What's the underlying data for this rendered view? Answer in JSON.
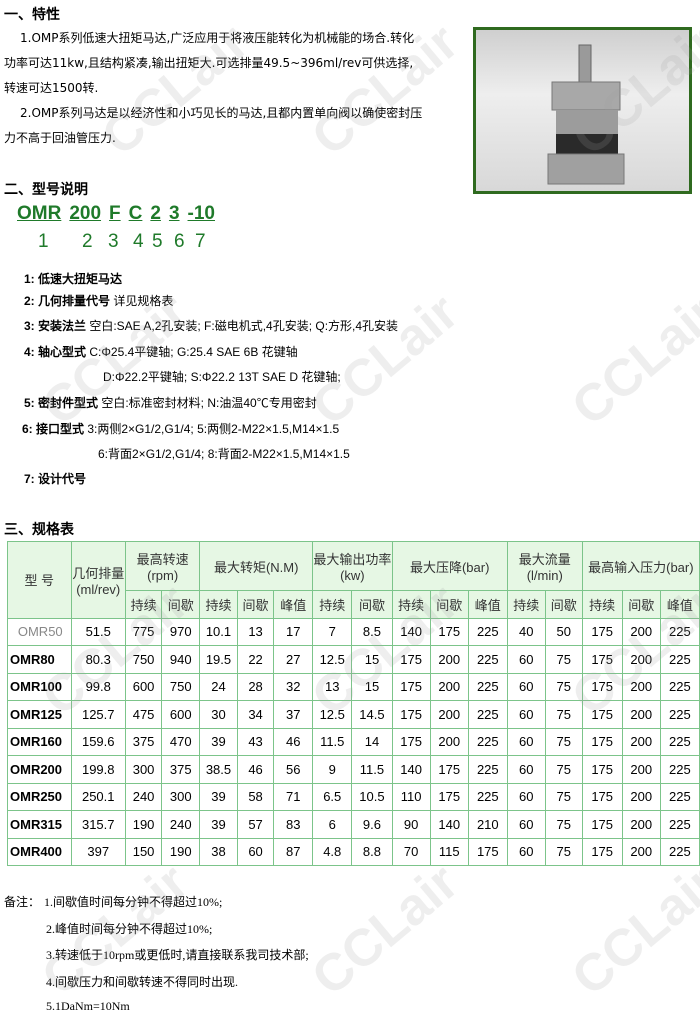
{
  "section1": {
    "title": "一、特性",
    "lines": [
      "1.OMP系列低速大扭矩马达,广泛应用于将液压能转化为机械能的场合.转化",
      "功率可达11kw,且结构紧凑,输出扭矩大.可选排量49.5~396ml/rev可供选择,",
      "转速可达1500转.",
      "2.OMP系列马达是以经济性和小巧见长的马达,且都内置单向阀以确使密封压",
      "力不高于回油管压力."
    ]
  },
  "section2": {
    "title": "二、型号说明",
    "code": [
      "OMR",
      "200",
      "F",
      "C",
      "2",
      "3",
      "-10"
    ],
    "numbers": [
      "1",
      "2",
      "3",
      "4",
      "5",
      "6",
      "7"
    ],
    "items": [
      {
        "label": "1: 低速大扭矩马达",
        "text": ""
      },
      {
        "label": "2: 几何排量代号",
        "text": "详见规格表"
      },
      {
        "label": "3: 安装法兰",
        "text": "空白:SAE A,2孔安装; F:磁电机式,4孔安装; Q:方形,4孔安装"
      },
      {
        "label": "4: 轴心型式",
        "text": "C:Φ25.4平键轴; G:25.4 SAE 6B 花键轴"
      },
      {
        "label": "",
        "text": "D:Φ22.2平键轴; S:Φ22.2 13T SAE D 花键轴;"
      },
      {
        "label": "5: 密封件型式",
        "text": "空白:标准密封材料; N:油温40℃专用密封"
      },
      {
        "label": "6: 接口型式",
        "text": "3:两侧2×G1/2,G1/4; 5:两侧2-M22×1.5,M14×1.5"
      },
      {
        "label": "",
        "text": "6:背面2×G1/2,G1/4; 8:背面2-M22×1.5,M14×1.5"
      },
      {
        "label": "7: 设计代号",
        "text": ""
      }
    ]
  },
  "section3": {
    "title": "三、规格表",
    "header1": [
      "型 号",
      "几何排量(ml/rev)",
      "最高转速(rpm)",
      "最大转矩(N.M)",
      "最大输出功率(kw)",
      "最大压降(bar)",
      "最大流量(l/min)",
      "最高输入压力(bar)"
    ],
    "header2": [
      "持续",
      "间歇",
      "持续",
      "间歇",
      "峰值",
      "持续",
      "间歇",
      "持续",
      "间歇",
      "峰值",
      "持续",
      "间歇",
      "持续",
      "间歇",
      "峰值"
    ],
    "rows": [
      [
        "OMR50",
        "51.5",
        "775",
        "970",
        "10.1",
        "13",
        "17",
        "7",
        "8.5",
        "140",
        "175",
        "225",
        "40",
        "50",
        "175",
        "200",
        "225"
      ],
      [
        "OMR80",
        "80.3",
        "750",
        "940",
        "19.5",
        "22",
        "27",
        "12.5",
        "15",
        "175",
        "200",
        "225",
        "60",
        "75",
        "175",
        "200",
        "225"
      ],
      [
        "OMR100",
        "99.8",
        "600",
        "750",
        "24",
        "28",
        "32",
        "13",
        "15",
        "175",
        "200",
        "225",
        "60",
        "75",
        "175",
        "200",
        "225"
      ],
      [
        "OMR125",
        "125.7",
        "475",
        "600",
        "30",
        "34",
        "37",
        "12.5",
        "14.5",
        "175",
        "200",
        "225",
        "60",
        "75",
        "175",
        "200",
        "225"
      ],
      [
        "OMR160",
        "159.6",
        "375",
        "470",
        "39",
        "43",
        "46",
        "11.5",
        "14",
        "175",
        "200",
        "225",
        "60",
        "75",
        "175",
        "200",
        "225"
      ],
      [
        "OMR200",
        "199.8",
        "300",
        "375",
        "38.5",
        "46",
        "56",
        "9",
        "11.5",
        "140",
        "175",
        "225",
        "60",
        "75",
        "175",
        "200",
        "225"
      ],
      [
        "OMR250",
        "250.1",
        "240",
        "300",
        "39",
        "58",
        "71",
        "6.5",
        "10.5",
        "110",
        "175",
        "225",
        "60",
        "75",
        "175",
        "200",
        "225"
      ],
      [
        "OMR315",
        "315.7",
        "190",
        "240",
        "39",
        "57",
        "83",
        "6",
        "9.6",
        "90",
        "140",
        "210",
        "60",
        "75",
        "175",
        "200",
        "225"
      ],
      [
        "OMR400",
        "397",
        "150",
        "190",
        "38",
        "60",
        "87",
        "4.8",
        "8.8",
        "70",
        "115",
        "175",
        "60",
        "75",
        "175",
        "200",
        "225"
      ]
    ]
  },
  "notes": {
    "label": "备注：",
    "items": [
      "1.间歇值时间每分钟不得超过10%;",
      "2.峰值时间每分钟不得超过10%;",
      "3.转速低于10rpm或更低时,请直接联系我司技术部;",
      "4.间歇压力和间歇转速不得同时出现.",
      "5.1DaNm=10Nm"
    ]
  },
  "watermark": "CCLair",
  "colors": {
    "accent": "#1f7a2a",
    "table_border": "#7cc48a",
    "table_header_bg": "#e6f7e4",
    "photo_frame": "#2f6a1f"
  }
}
